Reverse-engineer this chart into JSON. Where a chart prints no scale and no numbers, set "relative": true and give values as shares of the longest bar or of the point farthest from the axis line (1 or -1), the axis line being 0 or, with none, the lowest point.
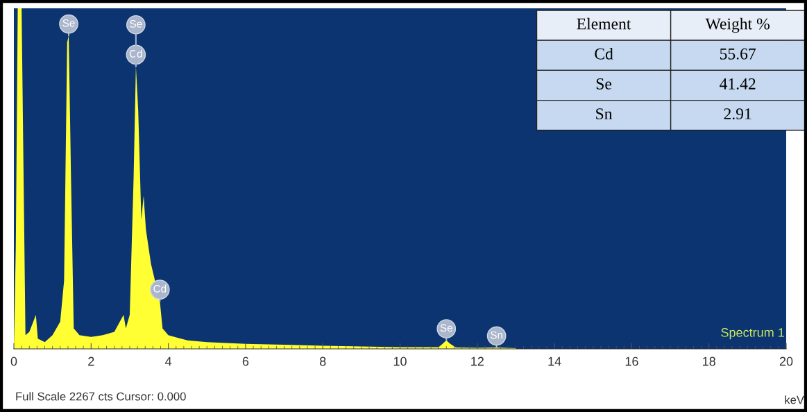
{
  "chart_data": {
    "type": "area",
    "relative": true,
    "xlabel": "keV",
    "color": "#ffff33",
    "x": [
      0.0,
      0.05,
      0.1,
      0.2,
      0.3,
      0.4,
      0.57,
      0.62,
      0.8,
      1.0,
      1.2,
      1.3,
      1.38,
      1.42,
      1.48,
      1.55,
      1.7,
      2.0,
      2.3,
      2.6,
      2.84,
      2.9,
      3.0,
      3.1,
      3.16,
      3.22,
      3.3,
      3.36,
      3.42,
      3.55,
      3.78,
      3.85,
      4.0,
      4.5,
      5.0,
      6.0,
      7.0,
      8.0,
      9.0,
      10.0,
      11.0,
      11.1,
      11.2,
      11.3,
      11.45,
      12.0,
      12.5,
      13.0
    ],
    "values": [
      0.0,
      0.3,
      1.0,
      1.0,
      0.04,
      0.05,
      0.1,
      0.03,
      0.02,
      0.04,
      0.08,
      0.2,
      0.9,
      0.92,
      0.5,
      0.06,
      0.04,
      0.035,
      0.04,
      0.05,
      0.1,
      0.06,
      0.1,
      0.5,
      0.83,
      0.7,
      0.38,
      0.45,
      0.35,
      0.25,
      0.14,
      0.06,
      0.04,
      0.025,
      0.02,
      0.015,
      0.012,
      0.009,
      0.007,
      0.005,
      0.005,
      0.015,
      0.025,
      0.015,
      0.004,
      0.003,
      0.004,
      0.002
    ],
    "xlim": [
      0,
      20
    ],
    "xticks": [
      0,
      2,
      4,
      6,
      8,
      10,
      12,
      14,
      16,
      18,
      20
    ],
    "grid": false,
    "annotations": [
      {
        "text": "Se",
        "x": 1.42,
        "y": 0.92
      },
      {
        "text": "Cd",
        "x": 3.16,
        "y": 0.83
      },
      {
        "text": "Se",
        "x": 3.16,
        "y": 0.83
      },
      {
        "text": "Cd",
        "x": 3.78,
        "y": 0.14
      },
      {
        "text": "Se",
        "x": 11.2,
        "y": 0.025
      },
      {
        "text": "Sn",
        "x": 12.5,
        "y": 0.004
      },
      "Spectrum 1",
      "Full Scale 2267 cts Cursor: 0.000",
      "Element",
      "Weight %",
      "Cd",
      "55.67",
      "Se",
      "41.42",
      "Sn",
      "2.91"
    ]
  }
}
